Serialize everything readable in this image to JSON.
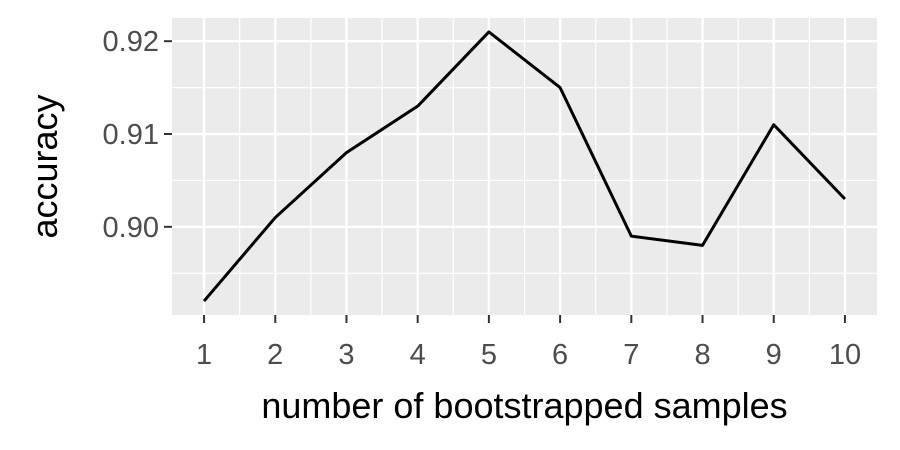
{
  "chart_data": {
    "type": "line",
    "x": [
      1,
      2,
      3,
      4,
      5,
      6,
      7,
      8,
      9,
      10
    ],
    "y": [
      0.892,
      0.901,
      0.908,
      0.913,
      0.921,
      0.915,
      0.899,
      0.898,
      0.911,
      0.903
    ],
    "xlabel": "number of bootstrapped samples",
    "ylabel": "accuracy",
    "x_ticks": [
      "1",
      "2",
      "3",
      "4",
      "5",
      "6",
      "7",
      "8",
      "9",
      "10"
    ],
    "y_ticks": [
      "0.90",
      "0.91",
      "0.92"
    ],
    "xlim": [
      0.55,
      10.45
    ],
    "ylim": [
      0.8905,
      0.9225
    ],
    "grid": true,
    "colors": {
      "panel": "#ebebeb",
      "grid": "#ffffff",
      "line": "#000000",
      "tick": "#333333"
    }
  }
}
